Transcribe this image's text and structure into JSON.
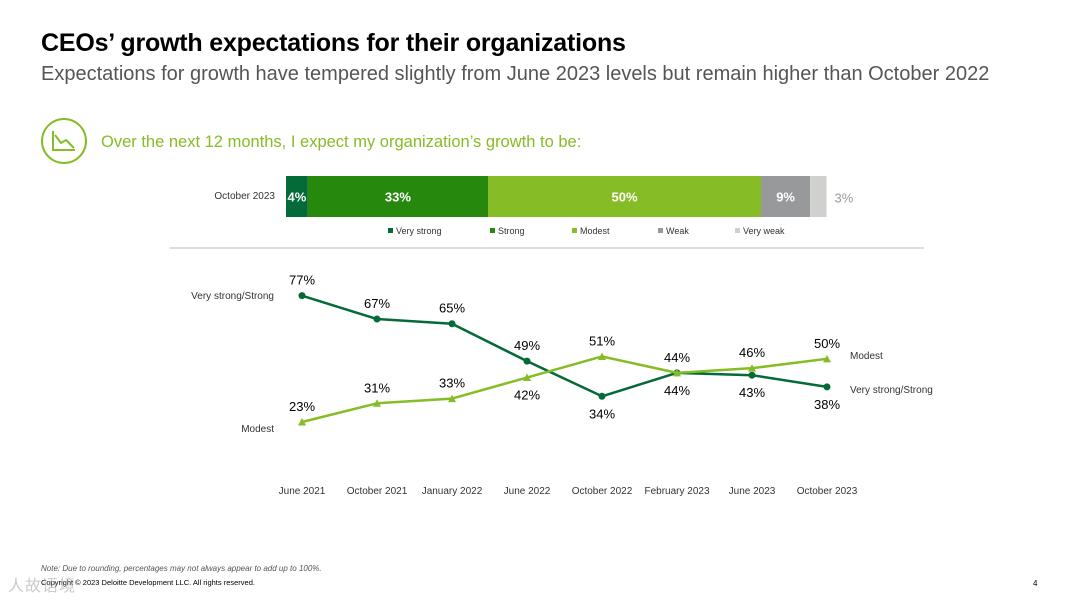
{
  "header": {
    "title": "CEOs’ growth expectations for their organizations",
    "subtitle": "Expectations for growth have tempered slightly from June 2023 levels but remain higher than October 2022",
    "question": "Over the next 12 months, I expect my organization’s growth to be:",
    "icon": "declining-line-chart-icon"
  },
  "colors": {
    "accent_green": "#86bc25",
    "dark_green": "#046a38",
    "mid_green": "#26890d",
    "gray": "#97999b",
    "light_gray": "#d0d0ce",
    "text_gray": "#555555"
  },
  "chart_data": [
    {
      "type": "bar",
      "orientation": "horizontal",
      "stacked": true,
      "categories": [
        "October 2023"
      ],
      "series": [
        {
          "name": "Very strong",
          "values": [
            4
          ],
          "label": "4%",
          "color": "#046a38"
        },
        {
          "name": "Strong",
          "values": [
            33
          ],
          "label": "33%",
          "color": "#26890d"
        },
        {
          "name": "Modest",
          "values": [
            50
          ],
          "label": "50%",
          "color": "#86bc25"
        },
        {
          "name": "Weak",
          "values": [
            9
          ],
          "label": "9%",
          "color": "#97999b"
        },
        {
          "name": "Very weak",
          "values": [
            3
          ],
          "label": "3%",
          "color": "#d0d0ce"
        }
      ],
      "legend": "bottom"
    },
    {
      "type": "line",
      "categories": [
        "June 2021",
        "October 2021",
        "January 2022",
        "June 2022",
        "October 2022",
        "February 2023",
        "June 2023",
        "October 2023"
      ],
      "series": [
        {
          "name": "Very strong/Strong",
          "values": [
            77,
            67,
            65,
            49,
            34,
            44,
            43,
            38
          ],
          "labels": [
            "77%",
            "67%",
            "65%",
            "49%",
            "34%",
            "44%",
            "43%",
            "38%"
          ],
          "marker": "circle",
          "color": "#046a38"
        },
        {
          "name": "Modest",
          "values": [
            23,
            31,
            33,
            42,
            51,
            44,
            46,
            50
          ],
          "labels": [
            "23%",
            "31%",
            "33%",
            "42%",
            "51%",
            "44%",
            "46%",
            "50%"
          ],
          "marker": "triangle",
          "color": "#86bc25"
        }
      ],
      "grid": false,
      "legend": "inline-labels"
    }
  ],
  "footer": {
    "note": "Note: Due to rounding, percentages may not always appear to add up to 100%.",
    "copyright": "Copyright © 2023 Deloitte Development LLC. All rights reserved.",
    "page": "4",
    "watermark": "人故语境"
  }
}
